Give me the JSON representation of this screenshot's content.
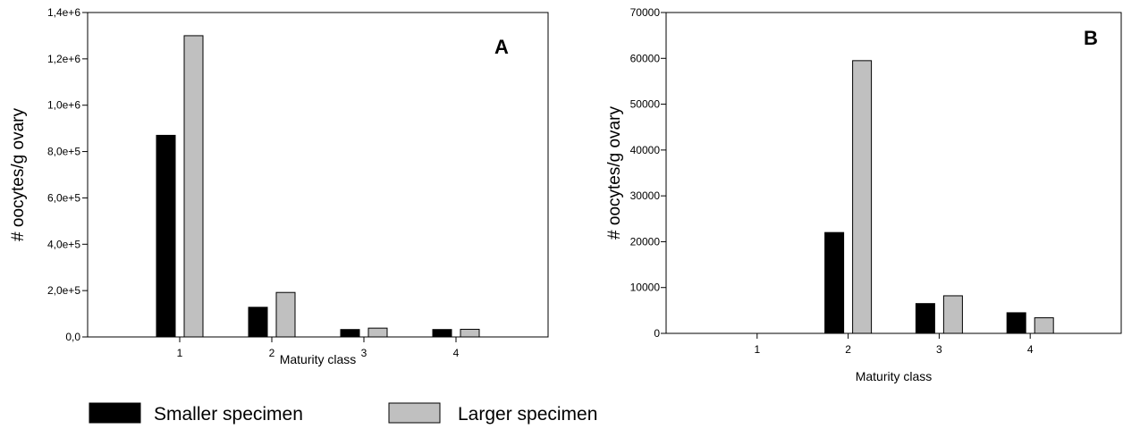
{
  "chart_data": [
    {
      "type": "bar",
      "panel_label": "A",
      "categories": [
        "1",
        "2",
        "3",
        "4"
      ],
      "series": [
        {
          "name": "Smaller specimen",
          "color": "#000000",
          "values": [
            870000,
            128000,
            32000,
            32000
          ]
        },
        {
          "name": "Larger specimen",
          "color": "#c0c0c0",
          "values": [
            1300000,
            192000,
            38000,
            33000
          ]
        }
      ],
      "xlabel": "Maturity class",
      "ylabel": "# oocytes/g ovary",
      "ylim": [
        0,
        1400000
      ],
      "yticks": [
        0,
        200000,
        400000,
        600000,
        800000,
        1000000,
        1200000,
        1400000
      ],
      "ytick_labels": [
        "0,0",
        "2,0e+5",
        "4,0e+5",
        "6,0e+5",
        "8,0e+5",
        "1,0e+6",
        "1,2e+6",
        "1,4e+6"
      ],
      "grid": false
    },
    {
      "type": "bar",
      "panel_label": "B",
      "categories": [
        "1",
        "2",
        "3",
        "4"
      ],
      "series": [
        {
          "name": "Smaller specimen",
          "color": "#000000",
          "values": [
            0,
            22000,
            6500,
            4500
          ]
        },
        {
          "name": "Larger specimen",
          "color": "#c0c0c0",
          "values": [
            0,
            59500,
            8200,
            3400
          ]
        }
      ],
      "xlabel": "Maturity class",
      "ylabel": "# oocytes/g ovary",
      "ylim": [
        0,
        70000
      ],
      "yticks": [
        0,
        10000,
        20000,
        30000,
        40000,
        50000,
        60000,
        70000
      ],
      "ytick_labels": [
        "0",
        "10000",
        "20000",
        "30000",
        "40000",
        "50000",
        "60000",
        "70000"
      ],
      "grid": false
    }
  ],
  "legend": {
    "placement": "bottom-left",
    "items": [
      {
        "label": "Smaller specimen",
        "color": "#000000"
      },
      {
        "label": "Larger specimen",
        "color": "#c0c0c0"
      }
    ]
  }
}
